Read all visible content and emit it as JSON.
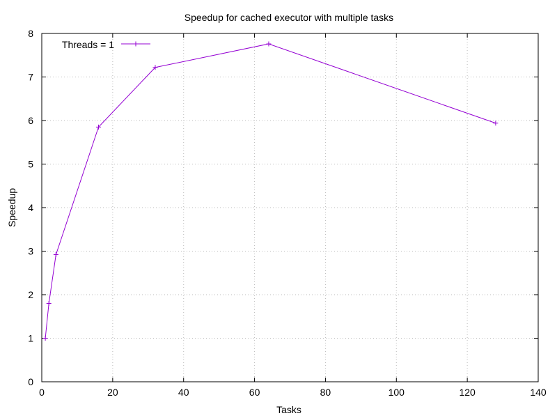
{
  "chart_data": {
    "type": "line",
    "title": "Speedup for cached executor with multiple tasks",
    "xlabel": "Tasks",
    "ylabel": "Speedup",
    "xlim": [
      0,
      140
    ],
    "ylim": [
      0,
      8
    ],
    "xticks": [
      0,
      20,
      40,
      60,
      80,
      100,
      120,
      140
    ],
    "yticks": [
      0,
      1,
      2,
      3,
      4,
      5,
      6,
      7,
      8
    ],
    "grid": true,
    "legend_position": "top-left",
    "series": [
      {
        "name": "Threads = 1",
        "color": "#9400d3",
        "marker": "plus",
        "x": [
          1,
          2,
          4,
          16,
          32,
          64,
          128
        ],
        "y": [
          1.0,
          1.8,
          2.92,
          5.85,
          7.22,
          7.76,
          5.94
        ]
      }
    ]
  }
}
